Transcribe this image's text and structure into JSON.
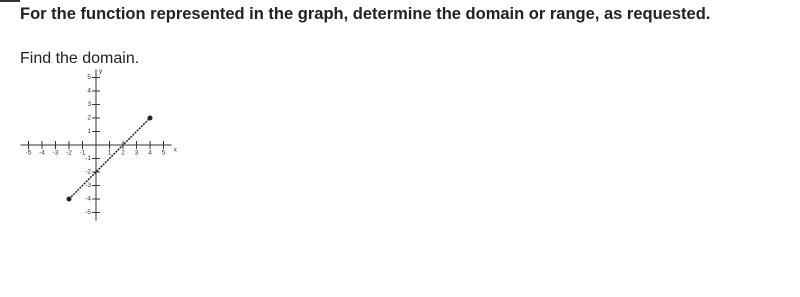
{
  "header": "For the function represented in the graph, determine the domain or range, as requested.",
  "prompt": "Find the domain.",
  "chart_data": {
    "type": "line",
    "xlabel": "x",
    "ylabel": "y",
    "x": [
      -2,
      4
    ],
    "values": [
      -4,
      2
    ],
    "color": "#222222",
    "xlim": [
      -5.6,
      5.6
    ],
    "ylim": [
      -5.6,
      5.6
    ],
    "xticks": [
      -5,
      -4,
      -3,
      -2,
      -1,
      1,
      2,
      3,
      4,
      5
    ],
    "yticks": [
      -5,
      -4,
      -3,
      -2,
      -1,
      1,
      2,
      3,
      4,
      5
    ]
  }
}
